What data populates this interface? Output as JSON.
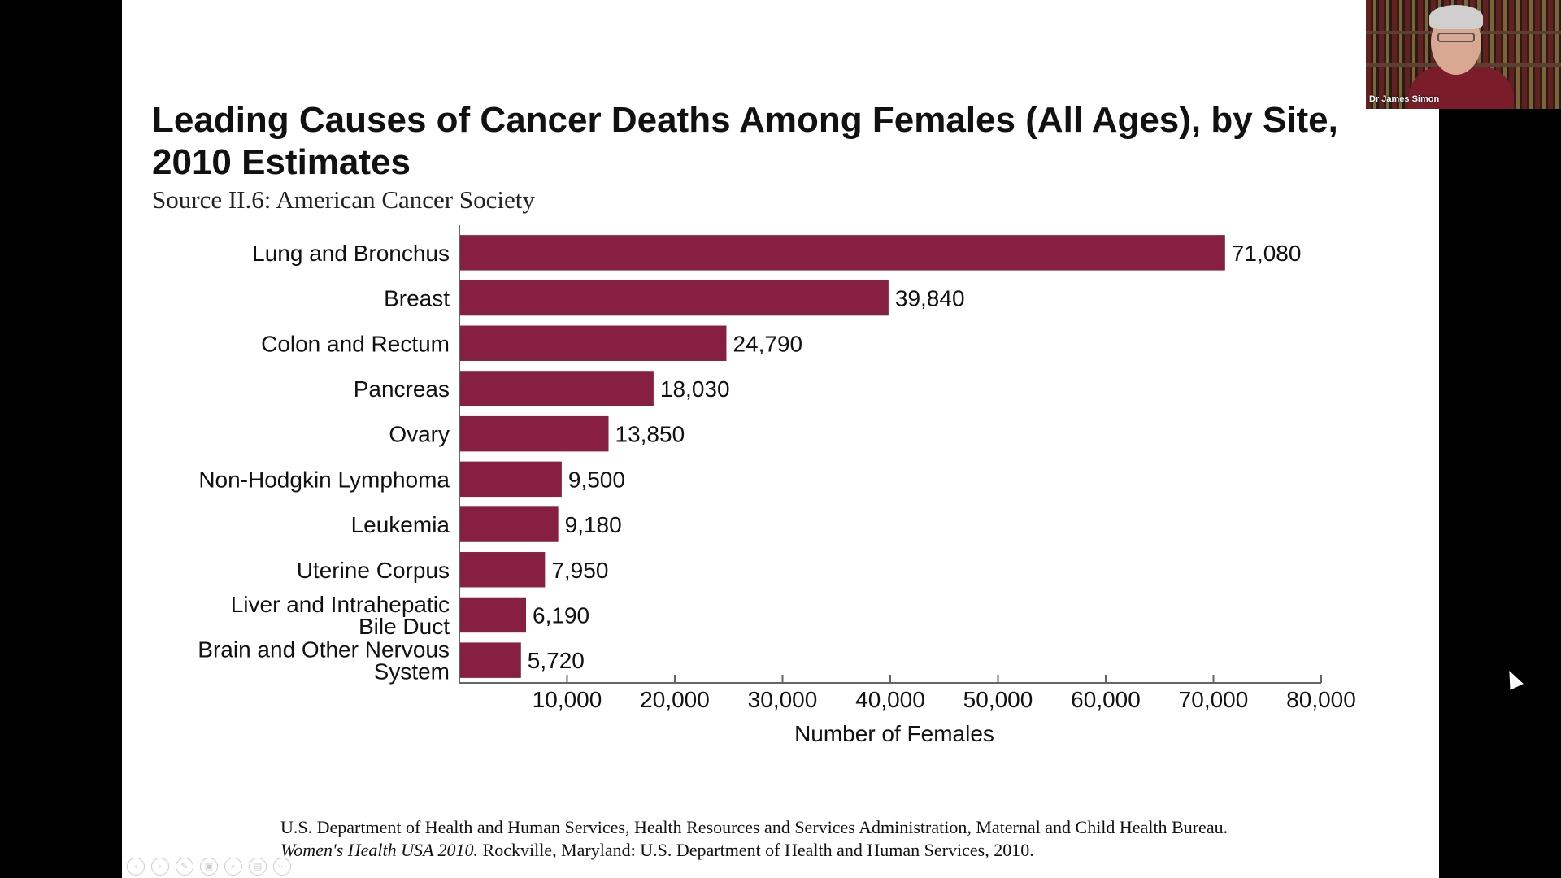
{
  "slide": {
    "title": "Leading Causes of Cancer Deaths Among Females (All Ages), by Site, 2010 Estimates",
    "subtitle": "Source II.6: American Cancer Society",
    "footer_line1": "U.S. Department of Health and Human Services, Health Resources and Services Administration, Maternal and Child Health Bureau.",
    "footer_italic": "Women's Health USA 2010.",
    "footer_rest": " Rockville, Maryland: U.S. Department of Health and Human Services, 2010."
  },
  "chart_data": {
    "type": "bar",
    "orientation": "horizontal",
    "categories": [
      "Lung and Bronchus",
      "Breast",
      "Colon and Rectum",
      "Pancreas",
      "Ovary",
      "Non-Hodgkin Lymphoma",
      "Leukemia",
      "Uterine Corpus",
      "Liver and Intrahepatic Bile Duct",
      "Brain and Other Nervous System"
    ],
    "category_lines": [
      [
        "Lung and Bronchus"
      ],
      [
        "Breast"
      ],
      [
        "Colon and Rectum"
      ],
      [
        "Pancreas"
      ],
      [
        "Ovary"
      ],
      [
        "Non-Hodgkin Lymphoma"
      ],
      [
        "Leukemia"
      ],
      [
        "Uterine Corpus"
      ],
      [
        "Liver and Intrahepatic",
        "Bile Duct"
      ],
      [
        "Brain and Other Nervous",
        "System"
      ]
    ],
    "values": [
      71080,
      39840,
      24790,
      18030,
      13850,
      9500,
      9180,
      7950,
      6190,
      5720
    ],
    "value_labels": [
      "71,080",
      "39,840",
      "24,790",
      "18,030",
      "13,850",
      "9,500",
      "9,180",
      "7,950",
      "6,190",
      "5,720"
    ],
    "xticks": [
      10000,
      20000,
      30000,
      40000,
      50000,
      60000,
      70000,
      80000
    ],
    "xtick_labels": [
      "10,000",
      "20,000",
      "30,000",
      "40,000",
      "50,000",
      "60,000",
      "70,000",
      "80,000"
    ],
    "xlabel": "Number of Females",
    "xlim": [
      0,
      80000
    ],
    "bar_color": "#861f41",
    "grid": false,
    "legend": "none"
  },
  "webcam": {
    "name": "Dr James Simon"
  },
  "toolbar": {
    "icons": [
      "prev-icon",
      "next-icon",
      "pen-icon",
      "slides-icon",
      "zoom-icon",
      "subtitles-icon",
      "more-icon"
    ],
    "glyphs": [
      "‹",
      "›",
      "✎",
      "▣",
      "⌕",
      "▤",
      "⋯"
    ]
  },
  "colors": {
    "bar": "#861f41",
    "background": "#000000",
    "slide": "#ffffff"
  }
}
